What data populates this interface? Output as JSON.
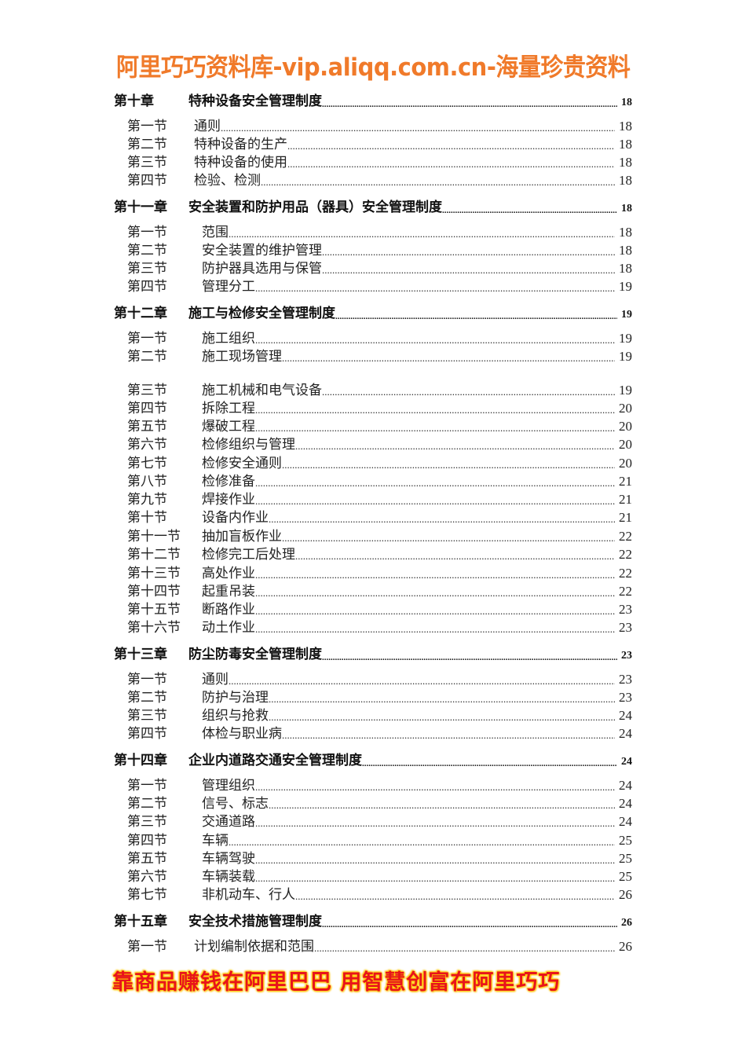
{
  "header": {
    "banner": "阿里巧巧资料库-vip.aliqq.com.cn-海量珍贵资料",
    "color": "#f07a2a"
  },
  "footer": {
    "slogan": "靠商品赚钱在阿里巴巴  用智慧创富在阿里巧巧",
    "color": "#e8141b",
    "glow": "#ffd600"
  },
  "toc": [
    {
      "type": "chapter",
      "num": "第十章",
      "title": "特种设备安全管理制度",
      "page": "18"
    },
    {
      "type": "section",
      "num": "第一节",
      "title": "通则",
      "page": "18"
    },
    {
      "type": "section",
      "num": "第二节",
      "title": "特种设备的生产",
      "page": "18"
    },
    {
      "type": "section",
      "num": "第三节",
      "title": "特种设备的使用",
      "page": "18"
    },
    {
      "type": "section",
      "num": "第四节",
      "title": "检验、检测",
      "page": "18"
    },
    {
      "type": "chapter",
      "num": "第十一章",
      "title": "安全装置和防护用品（器具）安全管理制度",
      "page": "18"
    },
    {
      "type": "section",
      "num": "第一节",
      "title": "范围",
      "page": "18"
    },
    {
      "type": "section",
      "num": "第二节",
      "title": "安全装置的维护管理",
      "page": "18"
    },
    {
      "type": "section",
      "num": "第三节",
      "title": "防护器具选用与保管",
      "page": "18"
    },
    {
      "type": "section",
      "num": "第四节",
      "title": "管理分工",
      "page": "19"
    },
    {
      "type": "chapter",
      "num": "第十二章",
      "title": "施工与检修安全管理制度",
      "page": "19"
    },
    {
      "type": "section",
      "num": "第一节",
      "title": "施工组织",
      "page": "19"
    },
    {
      "type": "section",
      "num": "第二节",
      "title": "施工现场管理",
      "page": "19"
    },
    {
      "type": "section",
      "num": "第三节",
      "title": "施工机械和电气设备",
      "page": "19"
    },
    {
      "type": "section",
      "num": "第四节",
      "title": "拆除工程",
      "page": "20"
    },
    {
      "type": "section",
      "num": "第五节",
      "title": "爆破工程",
      "page": "20"
    },
    {
      "type": "section",
      "num": "第六节",
      "title": "检修组织与管理",
      "page": "20"
    },
    {
      "type": "section",
      "num": "第七节",
      "title": "检修安全通则",
      "page": "20"
    },
    {
      "type": "section",
      "num": "第八节",
      "title": "检修准备",
      "page": "21"
    },
    {
      "type": "section",
      "num": "第九节",
      "title": "焊接作业",
      "page": "21"
    },
    {
      "type": "section",
      "num": "第十节",
      "title": "设备内作业",
      "page": "21"
    },
    {
      "type": "section",
      "num": "第十一节",
      "title": "抽加盲板作业",
      "page": "22"
    },
    {
      "type": "section",
      "num": "第十二节",
      "title": "检修完工后处理",
      "page": "22"
    },
    {
      "type": "section",
      "num": "第十三节",
      "title": "高处作业",
      "page": "22"
    },
    {
      "type": "section",
      "num": "第十四节",
      "title": "起重吊装",
      "page": "22"
    },
    {
      "type": "section",
      "num": "第十五节",
      "title": "断路作业",
      "page": "23"
    },
    {
      "type": "section",
      "num": "第十六节",
      "title": "动土作业",
      "page": "23"
    },
    {
      "type": "chapter",
      "num": "第十三章",
      "title": "防尘防毒安全管理制度",
      "page": "23"
    },
    {
      "type": "section",
      "num": "第一节",
      "title": "通则",
      "page": "23"
    },
    {
      "type": "section",
      "num": "第二节",
      "title": "防护与治理",
      "page": "23"
    },
    {
      "type": "section",
      "num": "第三节",
      "title": "组织与抢救",
      "page": "24"
    },
    {
      "type": "section",
      "num": "第四节",
      "title": "体检与职业病",
      "page": "24"
    },
    {
      "type": "chapter",
      "num": "第十四章",
      "title": "企业内道路交通安全管理制度",
      "page": "24"
    },
    {
      "type": "section",
      "num": "第一节",
      "title": "管理组织",
      "page": "24"
    },
    {
      "type": "section",
      "num": "第二节",
      "title": "信号、标志",
      "page": "24"
    },
    {
      "type": "section",
      "num": "第三节",
      "title": "交通道路",
      "page": "24"
    },
    {
      "type": "section",
      "num": "第四节",
      "title": "车辆",
      "page": "25"
    },
    {
      "type": "section",
      "num": "第五节",
      "title": "车辆驾驶",
      "page": "25"
    },
    {
      "type": "section",
      "num": "第六节",
      "title": "车辆装载",
      "page": "25"
    },
    {
      "type": "section",
      "num": "第七节",
      "title": "非机动车、行人",
      "page": "26"
    },
    {
      "type": "chapter",
      "num": "第十五章",
      "title": "安全技术措施管理制度",
      "page": "26"
    },
    {
      "type": "section",
      "num": "第一节",
      "title": "计划编制依据和范围",
      "page": "26"
    }
  ]
}
